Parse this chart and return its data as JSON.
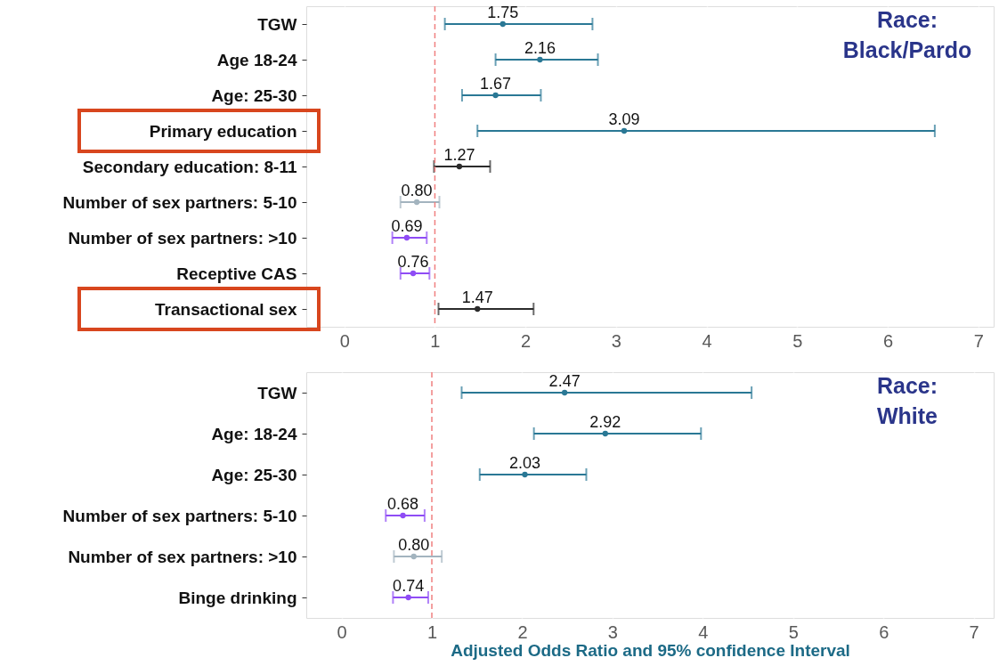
{
  "chart_data": [
    {
      "type": "scatter",
      "orientation": "horizontal",
      "categories": [
        "TGW",
        "Age 18-24",
        "Age: 25-30",
        "Primary education",
        "Secondary education: 8-11",
        "Number of sex partners: 5-10",
        "Number of sex partners: >10",
        "Receptive CAS",
        "Transactional sex"
      ],
      "values": [
        1.75,
        2.16,
        1.67,
        3.09,
        1.27,
        0.8,
        0.69,
        0.76,
        1.47
      ],
      "errors": [
        [
          1.11,
          2.74
        ],
        [
          1.67,
          2.8
        ],
        [
          1.3,
          2.17
        ],
        [
          1.47,
          6.52
        ],
        [
          0.99,
          1.61
        ],
        [
          0.62,
          1.05
        ],
        [
          0.53,
          0.91
        ],
        [
          0.62,
          0.94
        ],
        [
          1.04,
          2.09
        ]
      ],
      "colors": [
        "#2a7895",
        "#2a7895",
        "#2a7895",
        "#2a7895",
        "#2b2b2b",
        "#a3b4bf",
        "#8f4cf5",
        "#8f4cf5",
        "#2b2b2b"
      ],
      "value_labels": [
        "1.75",
        "2.16",
        "1.67",
        "3.09",
        "1.27",
        "0.80",
        "0.69",
        "0.76",
        "1.47"
      ],
      "marker": "circle",
      "xlim": [
        -0.42,
        7.17
      ],
      "xticks": [
        0,
        1,
        2,
        3,
        4,
        5,
        6,
        7
      ],
      "grid": "x",
      "ref_lines": [
        {
          "axis": "x",
          "value": 1,
          "color": "#f08080",
          "line_style": "dashed"
        }
      ],
      "annotations": [
        "Race:\nBlack/Pardo"
      ]
    },
    {
      "type": "scatter",
      "orientation": "horizontal",
      "categories": [
        "TGW",
        "Age: 18-24",
        "Age: 25-30",
        "Number of sex partners: 5-10",
        "Number of sex partners: >10",
        "Binge drinking"
      ],
      "values": [
        2.47,
        2.92,
        2.03,
        0.68,
        0.8,
        0.74
      ],
      "errors": [
        [
          1.33,
          4.54
        ],
        [
          2.13,
          3.98
        ],
        [
          1.53,
          2.71
        ],
        [
          0.49,
          0.92
        ],
        [
          0.58,
          1.11
        ],
        [
          0.57,
          0.96
        ]
      ],
      "colors": [
        "#2a7895",
        "#2a7895",
        "#2a7895",
        "#8f4cf5",
        "#a3b4bf",
        "#8f4cf5"
      ],
      "value_labels": [
        "2.47",
        "2.92",
        "2.03",
        "0.68",
        "0.80",
        "0.74"
      ],
      "marker": "circle",
      "xlim": [
        -0.39,
        7.22
      ],
      "xticks": [
        0,
        1,
        2,
        3,
        4,
        5,
        6,
        7
      ],
      "grid": "x",
      "xlabel": "Adjusted Odds Ratio and 95% confidence Interval",
      "ref_lines": [
        {
          "axis": "x",
          "value": 1,
          "color": "#f08080",
          "line_style": "dashed"
        }
      ],
      "annotations": [
        "Race:\nWhite"
      ]
    }
  ]
}
